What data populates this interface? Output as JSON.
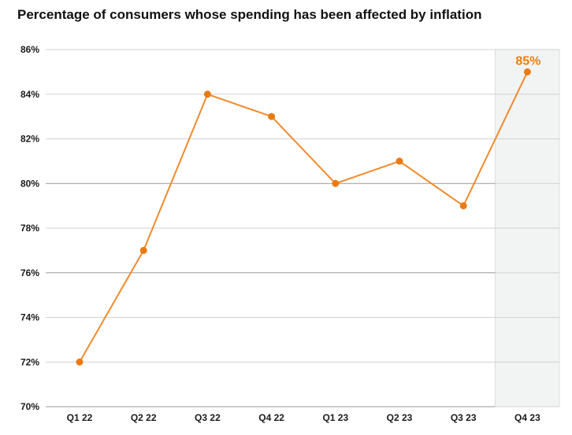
{
  "chart_data": {
    "type": "line",
    "title": "Percentage of consumers whose spending has been affected by inflation",
    "categories": [
      "Q1 22",
      "Q2 22",
      "Q3 22",
      "Q4 22",
      "Q1 23",
      "Q2 23",
      "Q3 23",
      "Q4 23"
    ],
    "series": [
      {
        "values": [
          72,
          77,
          84,
          83,
          80,
          81,
          79,
          85
        ]
      }
    ],
    "ylim": [
      70,
      86
    ],
    "yticks": [
      70,
      72,
      74,
      76,
      78,
      80,
      82,
      84,
      86
    ],
    "ytick_labels": [
      "70%",
      "72%",
      "74%",
      "76%",
      "78%",
      "80%",
      "82%",
      "84%",
      "86%"
    ],
    "highlight": {
      "category": "Q4 23",
      "label": "85%"
    },
    "grid": true,
    "colors": {
      "line": "#f08a2c",
      "highlight_band": "#f2f3f3",
      "highlight_text": "#f07d0a"
    }
  }
}
